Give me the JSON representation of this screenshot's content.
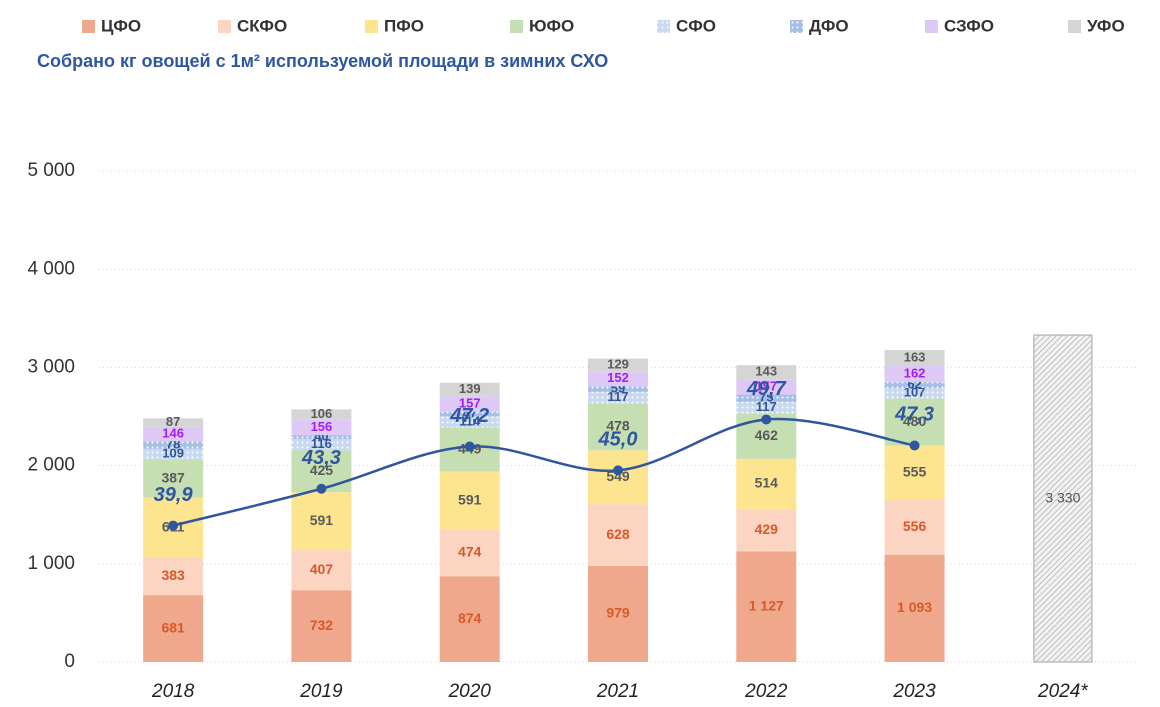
{
  "chart_data": {
    "type": "bar",
    "stacked": true,
    "categories": [
      "2018",
      "2019",
      "2020",
      "2021",
      "2022",
      "2023",
      "2024*"
    ],
    "series": [
      {
        "name": "ЦФО",
        "color": "#f0a88c",
        "label_color": "#d9582a",
        "values": [
          681,
          732,
          874,
          979,
          1127,
          1093,
          null
        ],
        "value_labels": [
          "681",
          "732",
          "874",
          "979",
          "1 127",
          "1 093",
          null
        ]
      },
      {
        "name": "СКФО",
        "color": "#fbd5c2",
        "label_color": "#d9582a",
        "values": [
          383,
          407,
          474,
          628,
          429,
          556,
          null
        ]
      },
      {
        "name": "ПФО",
        "color": "#fde48e",
        "label_color": "#5a5a5a",
        "values": [
          611,
          591,
          591,
          549,
          514,
          555,
          null
        ]
      },
      {
        "name": "ЮФО",
        "color": "#c6dfb2",
        "label_color": "#5a5a5a",
        "values": [
          387,
          425,
          449,
          478,
          462,
          480,
          null
        ]
      },
      {
        "name": "СФО",
        "color": "#c9d9ef",
        "label_color": "#2f5597",
        "pattern": "dots",
        "values": [
          109,
          116,
          114,
          117,
          117,
          107,
          null
        ]
      },
      {
        "name": "ДФО",
        "color": "#a7bfe4",
        "label_color": "#2f5597",
        "pattern": "dots",
        "values": [
          78,
          40,
          47,
          59,
          75,
          62,
          null
        ]
      },
      {
        "name": "СЗФО",
        "color": "#ddc8f6",
        "label_color": "#a020f0",
        "values": [
          146,
          156,
          157,
          152,
          157,
          162,
          null
        ]
      },
      {
        "name": "УФО",
        "color": "#d5d5d5",
        "label_color": "#5a5a5a",
        "values": [
          87,
          106,
          139,
          129,
          143,
          163,
          null
        ]
      }
    ],
    "forecast": {
      "color": "#bdbdbd",
      "values": [
        null,
        null,
        null,
        null,
        null,
        null,
        3330
      ],
      "value_labels": [
        null,
        null,
        null,
        null,
        null,
        null,
        "3 330"
      ]
    },
    "line": {
      "name": "Собрано кг овощей с 1м² используемой площади в зимних СХО",
      "color": "#2f57a0",
      "axis": "y2",
      "values": [
        39.9,
        43.3,
        47.2,
        45.0,
        49.7,
        47.3,
        null
      ],
      "value_labels": [
        "39,9",
        "43,3",
        "47,2",
        "45,0",
        "49,7",
        "47,3",
        null
      ]
    },
    "ylim": [
      0,
      6000
    ],
    "yticks": [
      0,
      {
        "value": 1000,
        "label": "1 000"
      },
      {
        "value": 2000,
        "label": "2 000"
      },
      {
        "value": 3000,
        "label": "3 000"
      },
      {
        "value": 4000,
        "label": "4 000"
      },
      {
        "value": 5000,
        "label": "5 000"
      }
    ],
    "y2lim": [
      27.3,
      81.7
    ],
    "grid": true,
    "legend": "top"
  }
}
